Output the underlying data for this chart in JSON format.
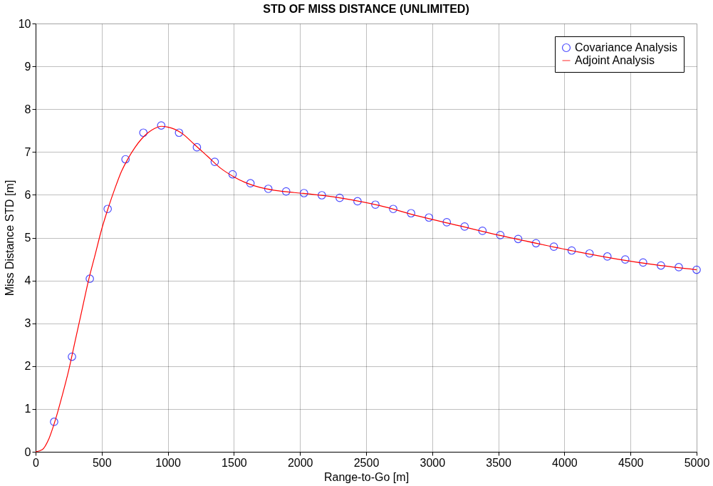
{
  "chart_data": {
    "type": "line",
    "title": "STD OF MISS DISTANCE (UNLIMITED)",
    "xlabel": "Range-to-Go [m]",
    "ylabel": "Miss Distance STD [m]",
    "xlim": [
      0,
      5000
    ],
    "xticks": [
      0,
      500,
      1000,
      1500,
      2000,
      2500,
      3000,
      3500,
      4000,
      4500,
      5000
    ],
    "ylim": [
      0,
      10
    ],
    "yticks": [
      0,
      1,
      2,
      3,
      4,
      5,
      6,
      7,
      8,
      9,
      10
    ],
    "grid": true,
    "legend": "top right",
    "series": [
      {
        "name": "Covariance Analysis",
        "type": "scatter",
        "marker": "circle",
        "color": "#0000ff",
        "x": [
          140,
          275,
          410,
          545,
          680,
          815,
          950,
          1085,
          1220,
          1355,
          1490,
          1625,
          1760,
          1895,
          2030,
          2165,
          2300,
          2435,
          2570,
          2705,
          2840,
          2975,
          3110,
          3245,
          3380,
          3515,
          3650,
          3785,
          3920,
          4055,
          4190,
          4325,
          4460,
          4595,
          4730,
          4865,
          5000
        ],
        "values": [
          0.7,
          2.22,
          4.04,
          5.67,
          6.83,
          7.45,
          7.62,
          7.45,
          7.11,
          6.77,
          6.48,
          6.27,
          6.14,
          6.08,
          6.04,
          5.99,
          5.93,
          5.85,
          5.77,
          5.67,
          5.57,
          5.47,
          5.36,
          5.26,
          5.16,
          5.06,
          4.97,
          4.87,
          4.79,
          4.7,
          4.63,
          4.56,
          4.49,
          4.42,
          4.35,
          4.31,
          4.25
        ]
      },
      {
        "name": "Adjoint Analysis",
        "line_style": "solid",
        "color": "#ff0000",
        "x": [
          0,
          50,
          100,
          150,
          200,
          250,
          300,
          350,
          400,
          450,
          500,
          550,
          600,
          650,
          700,
          750,
          800,
          850,
          900,
          950,
          1000,
          1100,
          1200,
          1300,
          1400,
          1500,
          1600,
          1700,
          1800,
          1900,
          2000,
          2300,
          2600,
          2900,
          3200,
          3500,
          3800,
          4100,
          4400,
          4700,
          5000
        ],
        "values": [
          0,
          0.05,
          0.3,
          0.75,
          1.3,
          1.9,
          2.6,
          3.3,
          4.0,
          4.6,
          5.2,
          5.7,
          6.15,
          6.55,
          6.85,
          7.1,
          7.3,
          7.45,
          7.55,
          7.6,
          7.58,
          7.45,
          7.18,
          6.9,
          6.62,
          6.42,
          6.27,
          6.17,
          6.11,
          6.07,
          6.04,
          5.93,
          5.75,
          5.5,
          5.28,
          5.06,
          4.86,
          4.67,
          4.5,
          4.36,
          4.25
        ]
      }
    ]
  }
}
